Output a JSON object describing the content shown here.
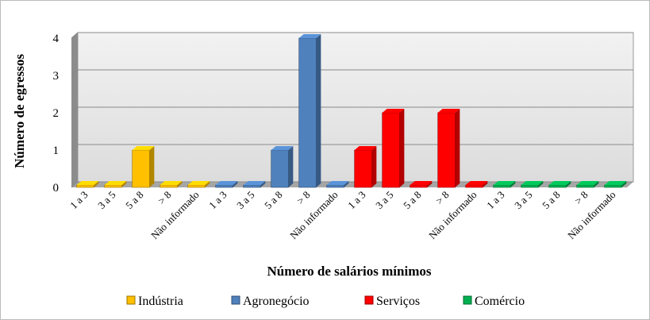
{
  "chart_data": {
    "type": "bar3d",
    "x_label": "Número de salários mínimos",
    "y_label": "Número de egressos",
    "categories": [
      "1 a 3",
      "3 a 5",
      "5 a 8",
      "> 8",
      "Não informado",
      "1 a 3",
      "3 a 5",
      "5 a 8",
      "> 8",
      "Não informado",
      "1 a 3",
      "3 a 5",
      "5 a 8",
      "> 8",
      "Não informado",
      "1 a 3",
      "3 a 5",
      "5 a 8",
      "> 8",
      "Não informado"
    ],
    "series": [
      {
        "name": "Indústria",
        "color": "#ffc000",
        "values": [
          0,
          0,
          1,
          0,
          0,
          null,
          null,
          null,
          null,
          null,
          null,
          null,
          null,
          null,
          null,
          null,
          null,
          null,
          null,
          null
        ]
      },
      {
        "name": "Agronegócio",
        "color": "#4f81bd",
        "values": [
          null,
          null,
          null,
          null,
          null,
          0,
          0,
          1,
          4,
          0,
          null,
          null,
          null,
          null,
          null,
          null,
          null,
          null,
          null,
          null
        ]
      },
      {
        "name": "Serviços",
        "color": "#ff0000",
        "values": [
          null,
          null,
          null,
          null,
          null,
          null,
          null,
          null,
          null,
          null,
          1,
          2,
          0,
          2,
          0,
          null,
          null,
          null,
          null,
          null
        ]
      },
      {
        "name": "Comércio",
        "color": "#00b050",
        "values": [
          null,
          null,
          null,
          null,
          null,
          null,
          null,
          null,
          null,
          null,
          null,
          null,
          null,
          null,
          null,
          0,
          0,
          0,
          0,
          0
        ]
      }
    ],
    "ylim": [
      0,
      4
    ],
    "yticks": [
      0,
      1,
      2,
      3,
      4
    ],
    "grid": true,
    "legend": "bottom"
  }
}
